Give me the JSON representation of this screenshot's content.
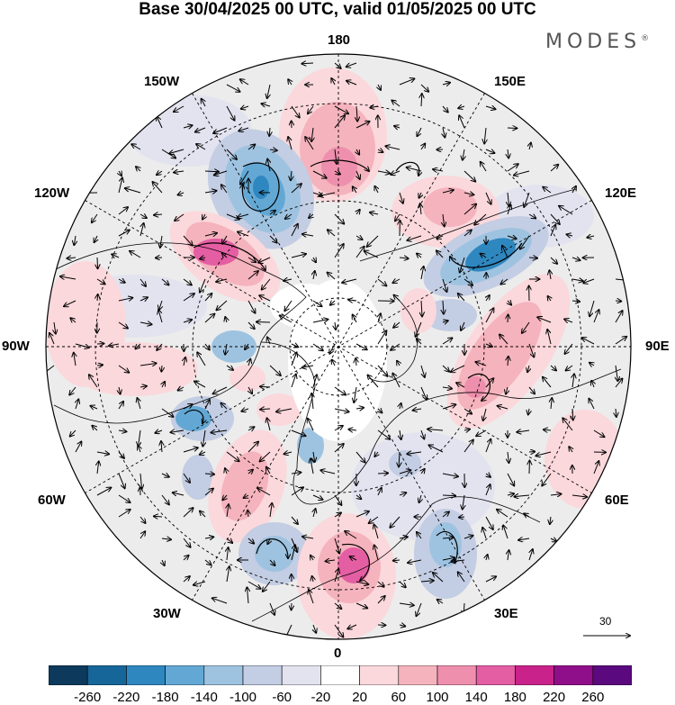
{
  "title": "Base 30/04/2025 00 UTC, valid 01/05/2025 00 UTC",
  "brand": "MODES",
  "brand_mark": "®",
  "longitude_labels": {
    "top": "180",
    "top_left": "150W",
    "top_right": "150E",
    "upper_left": "120W",
    "upper_right": "120E",
    "left": "90W",
    "right": "90E",
    "lower_left": "60W",
    "lower_right": "60E",
    "bottom_left": "30W",
    "bottom_right": "30E",
    "bottom": "0"
  },
  "reference_vector_label": "30",
  "colorbar": {
    "colors": [
      "#0d3a5c",
      "#16669a",
      "#2f87c0",
      "#63a8d4",
      "#9ec3e0",
      "#c3cde3",
      "#e3e3f0",
      "#ffffff",
      "#fbd8dc",
      "#f5b3bd",
      "#ef8fae",
      "#e45ea3",
      "#c9228a",
      "#8f0f8a",
      "#5a0a7e"
    ],
    "tick_labels": [
      "-260",
      "-220",
      "-180",
      "-140",
      "-100",
      "-60",
      "-20",
      "20",
      "60",
      "100",
      "140",
      "180",
      "220",
      "260"
    ]
  }
}
